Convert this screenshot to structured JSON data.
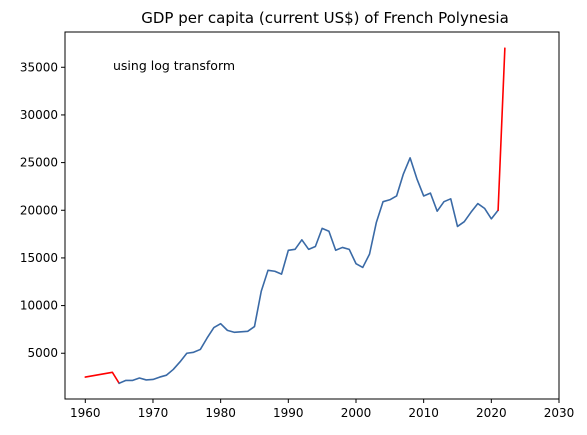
{
  "chart_data": {
    "type": "line",
    "title": "GDP per capita (current US$) of French Polynesia",
    "annotation": "using log transform",
    "xlabel": "",
    "ylabel": "",
    "xlim": [
      1957,
      2030
    ],
    "ylim": [
      200,
      38700
    ],
    "xticks": [
      1960,
      1970,
      1980,
      1990,
      2000,
      2010,
      2020,
      2030
    ],
    "yticks": [
      5000,
      10000,
      15000,
      20000,
      25000,
      30000,
      35000
    ],
    "grid": false,
    "legend": "none",
    "series": [
      {
        "color": "#ff0000",
        "x": [
          1960,
          1964,
          1965
        ],
        "y": [
          2500,
          3000,
          1850
        ]
      },
      {
        "color": "#3a6aa6",
        "x": [
          1965,
          1966,
          1967,
          1968,
          1969,
          1970,
          1971,
          1972,
          1973,
          1974,
          1975,
          1976,
          1977,
          1978,
          1979,
          1980,
          1981,
          1982,
          1983,
          1984,
          1985,
          1986,
          1987,
          1988,
          1989,
          1990,
          1991,
          1992,
          1993,
          1994,
          1995,
          1996,
          1997,
          1998,
          1999,
          2000,
          2001,
          2002,
          2003,
          2004,
          2005,
          2006,
          2007,
          2008,
          2009,
          2010,
          2011,
          2012,
          2013,
          2014,
          2015,
          2016,
          2017,
          2018,
          2019,
          2020,
          2021
        ],
        "y": [
          1850,
          2150,
          2150,
          2400,
          2200,
          2250,
          2500,
          2700,
          3300,
          4100,
          5000,
          5100,
          5400,
          6600,
          7700,
          8100,
          7400,
          7200,
          7250,
          7300,
          7800,
          11500,
          13700,
          13600,
          13300,
          15800,
          15900,
          16900,
          15900,
          16200,
          18100,
          17800,
          15800,
          16100,
          15900,
          14400,
          14000,
          15400,
          18700,
          20900,
          21100,
          21500,
          23800,
          25500,
          23300,
          21500,
          21800,
          19900,
          20900,
          21200,
          18300,
          18800,
          19800,
          20700,
          20200,
          19100,
          20000
        ]
      },
      {
        "color": "#ff0000",
        "x": [
          2021,
          2022
        ],
        "y": [
          20000,
          37000
        ]
      }
    ]
  }
}
